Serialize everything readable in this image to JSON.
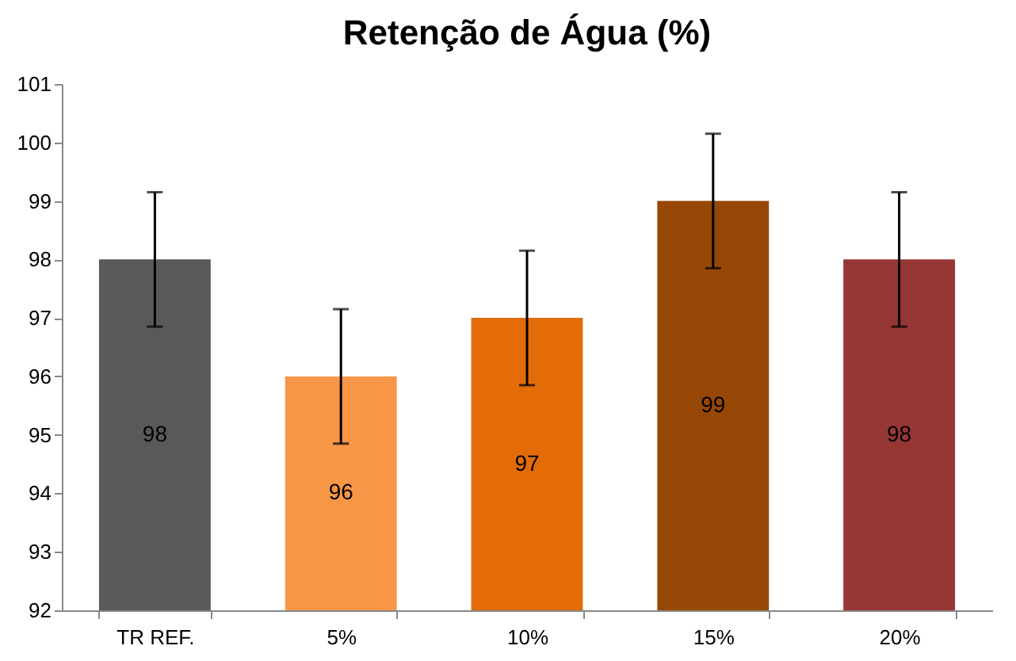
{
  "chart_data": {
    "type": "bar",
    "title": "Retenção de Água (%)",
    "categories": [
      "TR REF.",
      "5%",
      "10%",
      "15%",
      "20%"
    ],
    "values": [
      98,
      96,
      97,
      99,
      98
    ],
    "colors": [
      "#595959",
      "#f79646",
      "#e36c09",
      "#974806",
      "#953735"
    ],
    "errors": [
      1.15,
      1.15,
      1.15,
      1.15,
      1.15
    ],
    "ylim": [
      92,
      101
    ],
    "yticks": [
      92,
      93,
      94,
      95,
      96,
      97,
      98,
      99,
      100,
      101
    ],
    "data_labels": true,
    "grid": false
  }
}
